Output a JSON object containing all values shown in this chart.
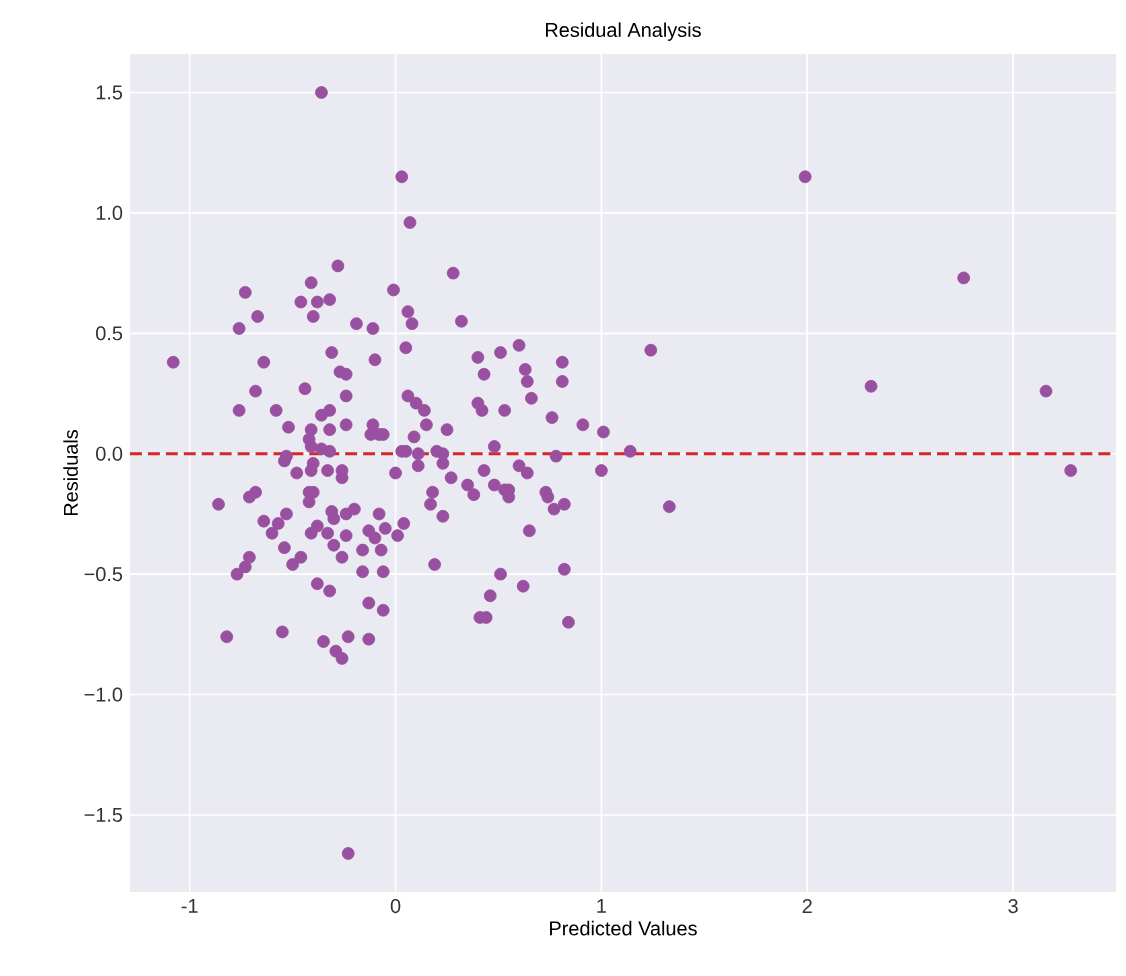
{
  "chart_data": {
    "type": "scatter",
    "title": "Residual Analysis",
    "xlabel": "Predicted Values",
    "ylabel": "Residuals",
    "xlim": [
      -1.29,
      3.5
    ],
    "ylim": [
      -1.82,
      1.66
    ],
    "xticks": [
      -1,
      0,
      1,
      2,
      3
    ],
    "yticks": [
      {
        "value": -1.5,
        "label": "−1.5"
      },
      {
        "value": -1.0,
        "label": "−1.0"
      },
      {
        "value": -0.5,
        "label": "−0.5"
      },
      {
        "value": 0.0,
        "label": "0.0"
      },
      {
        "value": 0.5,
        "label": "0.5"
      },
      {
        "value": 1.0,
        "label": "1.0"
      },
      {
        "value": 1.5,
        "label": "1.5"
      }
    ],
    "grid": true,
    "marker": "circle",
    "ref_lines": [
      {
        "axis": "y",
        "value": 0,
        "color": "#d62728",
        "line_style": "dashed"
      }
    ],
    "series": [
      {
        "color": "#9a50a0",
        "x": [
          -0.36,
          0.03,
          0.07,
          -0.28,
          0.28,
          -0.73,
          -0.41,
          -0.46,
          -0.38,
          -0.32,
          -0.4,
          -0.67,
          -0.76,
          -0.01,
          0.06,
          0.08,
          0.32,
          -0.19,
          -0.11,
          0.05,
          -0.31,
          -0.1,
          -1.08,
          -0.64,
          -0.27,
          -0.24,
          -0.44,
          -0.68,
          -0.24,
          0.06,
          0.1,
          0.14,
          -0.76,
          -0.58,
          -0.36,
          -0.32,
          -0.24,
          -0.32,
          -0.41,
          -0.52,
          -0.11,
          -0.08,
          -0.12,
          -0.06,
          0.15,
          0.25,
          0.09,
          -0.42,
          -0.41,
          -0.36,
          -0.32,
          -0.53,
          -0.54,
          -0.48,
          -0.4,
          -0.41,
          -0.33,
          -0.26,
          -0.26,
          0.03,
          0.05,
          0.11,
          0.2,
          0.23,
          0.11,
          0.0,
          0.23,
          0.27,
          0.4,
          0.51,
          0.6,
          0.43,
          0.63,
          0.64,
          0.66,
          0.81,
          0.81,
          0.4,
          0.42,
          0.53,
          0.76,
          0.91,
          1.01,
          0.48,
          1.14,
          1.24,
          0.78,
          0.6,
          0.64,
          0.43,
          1.0,
          0.35,
          0.38,
          0.48,
          0.53,
          0.55,
          0.55,
          0.73,
          0.74,
          0.77,
          0.82,
          1.33,
          0.65,
          0.18,
          0.17,
          0.23,
          0.19,
          0.51,
          0.82,
          0.46,
          0.62,
          0.41,
          0.44,
          0.84,
          -0.86,
          -0.71,
          -0.68,
          -0.64,
          -0.6,
          -0.57,
          -0.53,
          -0.54,
          -0.5,
          -0.46,
          -0.71,
          -0.73,
          -0.77,
          -0.82,
          -0.55,
          -0.42,
          -0.42,
          -0.4,
          -0.31,
          -0.3,
          -0.2,
          -0.24,
          -0.24,
          -0.41,
          -0.38,
          -0.33,
          -0.3,
          -0.26,
          -0.16,
          -0.13,
          -0.1,
          -0.08,
          -0.05,
          -0.07,
          0.01,
          0.04,
          -0.16,
          -0.06,
          -0.38,
          -0.32,
          -0.13,
          -0.06,
          -0.35,
          -0.29,
          -0.26,
          -0.23,
          -0.13,
          -0.23,
          1.99,
          2.76,
          2.31,
          3.16,
          3.28
        ],
        "values": [
          1.5,
          1.15,
          0.96,
          0.78,
          0.75,
          0.67,
          0.71,
          0.63,
          0.63,
          0.64,
          0.57,
          0.57,
          0.52,
          0.68,
          0.59,
          0.54,
          0.55,
          0.54,
          0.52,
          0.44,
          0.42,
          0.39,
          0.38,
          0.38,
          0.34,
          0.33,
          0.27,
          0.26,
          0.24,
          0.24,
          0.21,
          0.18,
          0.18,
          0.18,
          0.16,
          0.18,
          0.12,
          0.1,
          0.1,
          0.11,
          0.12,
          0.08,
          0.08,
          0.08,
          0.12,
          0.1,
          0.07,
          0.06,
          0.03,
          0.02,
          0.01,
          -0.01,
          -0.03,
          -0.08,
          -0.04,
          -0.07,
          -0.07,
          -0.07,
          -0.1,
          0.01,
          0.01,
          0.0,
          0.01,
          0.0,
          -0.05,
          -0.08,
          -0.04,
          -0.1,
          0.4,
          0.42,
          0.45,
          0.33,
          0.35,
          0.3,
          0.23,
          0.38,
          0.3,
          0.21,
          0.18,
          0.18,
          0.15,
          0.12,
          0.09,
          0.03,
          0.01,
          0.43,
          -0.01,
          -0.05,
          -0.08,
          -0.07,
          -0.07,
          -0.13,
          -0.17,
          -0.13,
          -0.15,
          -0.15,
          -0.18,
          -0.16,
          -0.18,
          -0.23,
          -0.21,
          -0.22,
          -0.32,
          -0.16,
          -0.21,
          -0.26,
          -0.46,
          -0.5,
          -0.48,
          -0.59,
          -0.55,
          -0.68,
          -0.68,
          -0.7,
          -0.21,
          -0.18,
          -0.16,
          -0.28,
          -0.33,
          -0.29,
          -0.25,
          -0.39,
          -0.46,
          -0.43,
          -0.43,
          -0.47,
          -0.5,
          -0.76,
          -0.74,
          -0.2,
          -0.16,
          -0.16,
          -0.24,
          -0.27,
          -0.23,
          -0.34,
          -0.25,
          -0.33,
          -0.3,
          -0.33,
          -0.38,
          -0.43,
          -0.4,
          -0.32,
          -0.35,
          -0.25,
          -0.31,
          -0.4,
          -0.34,
          -0.29,
          -0.49,
          -0.49,
          -0.54,
          -0.57,
          -0.62,
          -0.65,
          -0.78,
          -0.82,
          -0.85,
          -0.76,
          -0.77,
          -1.66,
          1.15,
          0.73,
          0.28,
          0.26,
          -0.07
        ]
      }
    ]
  }
}
